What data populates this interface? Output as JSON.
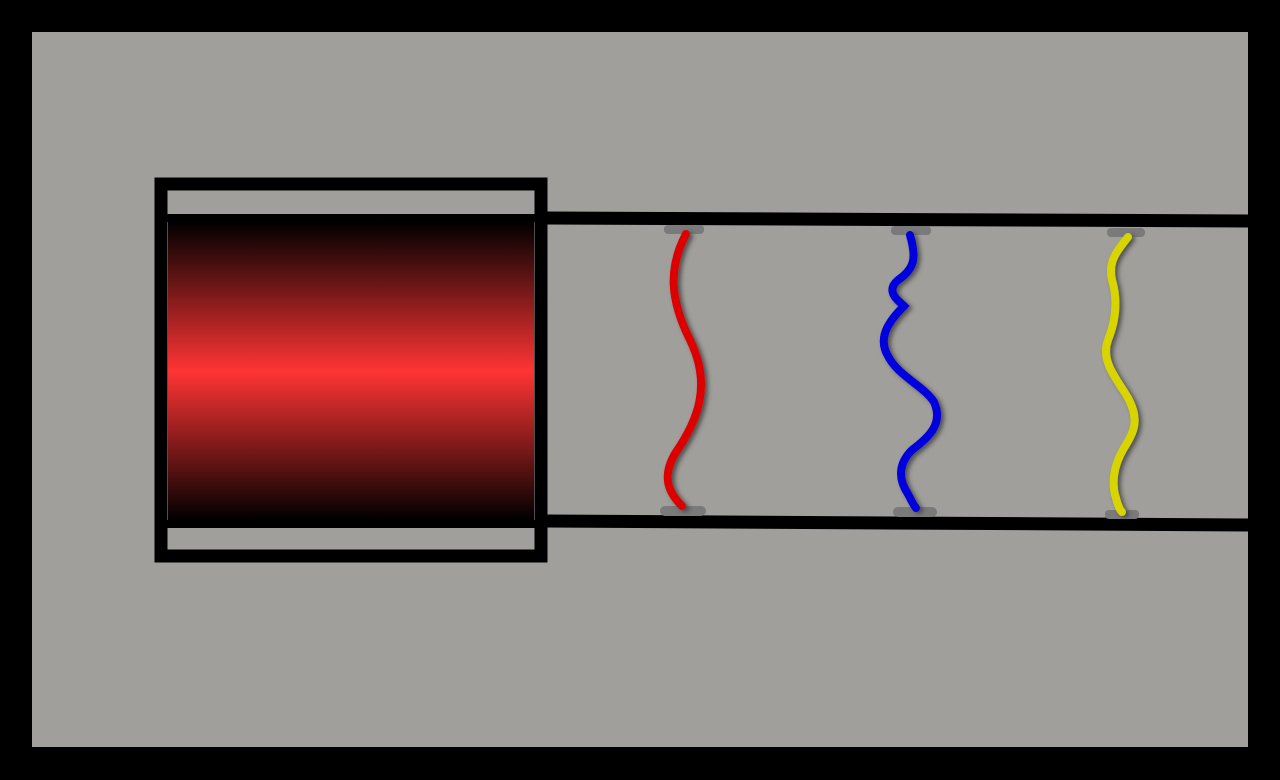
{
  "colors": {
    "frame": "#000000",
    "panel": "#a09f9b",
    "block_edge": "#000000",
    "block_center": "#ff3434",
    "track": "#000000",
    "anchor": "#7a7a7a",
    "wire_shadow": "#3b3b3b"
  },
  "block": {
    "icon": "glowing-red-cylinder"
  },
  "wires": [
    {
      "id": "red",
      "color": "#dd0000"
    },
    {
      "id": "blue",
      "color": "#0000dd"
    },
    {
      "id": "yellow",
      "color": "#d8d400"
    }
  ]
}
